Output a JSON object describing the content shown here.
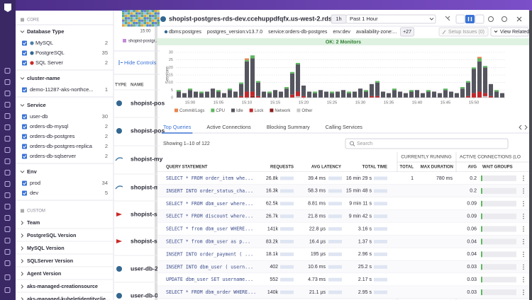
{
  "facets": {
    "core": "CORE",
    "groups": [
      {
        "title": "Database Type",
        "items": [
          {
            "label": "MySQL",
            "count": 2
          },
          {
            "label": "PostgreSQL",
            "count": 35
          },
          {
            "label": "SQL Server",
            "count": 2
          }
        ]
      },
      {
        "title": "cluster-name",
        "items": [
          {
            "label": "demo-11287-aks-northce...",
            "count": 1
          }
        ]
      },
      {
        "title": "Service",
        "items": [
          {
            "label": "user-db",
            "count": 30
          },
          {
            "label": "orders-db-mysql",
            "count": 2
          },
          {
            "label": "orders-db-postgres",
            "count": 2
          },
          {
            "label": "orders-db-postgres-replica",
            "count": 2
          },
          {
            "label": "orders-db-sqlserver",
            "count": 2
          }
        ]
      },
      {
        "title": "Env",
        "items": [
          {
            "label": "prod",
            "count": 34
          },
          {
            "label": "dev",
            "count": 5
          }
        ]
      }
    ],
    "custom": "CUSTOM",
    "custom_groups": [
      "Team",
      "PostgreSQL Version",
      "MySQL Version",
      "SQLServer Version",
      "Agent Version",
      "aks-managed-creationsource",
      "aks-managed-kubeletidentityclie..."
    ]
  },
  "list": {
    "chart_tick": "15:00",
    "legend": "shopist-postgr...",
    "hide_controls": "Hide Controls",
    "columns": [
      "TYPE",
      "NAME"
    ],
    "rows": [
      "shopist-pos",
      "shopist-pos",
      "shopist-my",
      "shopist-my",
      "shopist-sql",
      "shopist-sql",
      "user-db-2",
      "user-db-0"
    ]
  },
  "detail": {
    "title": "shopist-postgres-rds-dev.ccehuppdfqfx.us-west-2.rds.amazon...",
    "time_short": "1h",
    "time_range": "Past 1 Hour",
    "tags": [
      "dbms:postgres",
      "postgres_version:v13.7.0",
      "service:orders-db-postgres",
      "env:dev",
      "availability-zone:..."
    ],
    "more_tags": "+27",
    "setup_issues": "Setup Issues (0)",
    "view_related": "View Related",
    "monitors": "OK: 2 Monitors",
    "tabs": [
      "Top Queries",
      "Active Connections",
      "Blocking Summary",
      "Calling Services"
    ],
    "showing": "Showing 1–10 of 122",
    "search": "Search",
    "table": {
      "group_headers": [
        "CURRENTLY RUNNING",
        "ACTIVE CONNECTIONS (LO"
      ],
      "columns": [
        "QUERY STATEMENT",
        "REQUESTS",
        "AVG LATENCY",
        "TOTAL TIME",
        "TOTAL",
        "MAX DURATION",
        "AVG",
        "WAIT GROUPS"
      ],
      "rows": [
        {
          "query": "SELECT * FROM order_item whe...",
          "requests": "26.8k",
          "latency": "39.4 ms",
          "total_time": "16 min 29 s",
          "running_total": "1",
          "max_duration": "780 ms",
          "avg": "0.2"
        },
        {
          "query": "INSERT INTO order_status_cha...",
          "requests": "16.3k",
          "latency": "58.3 ms",
          "total_time": "15 min 48 s",
          "avg": "0.2"
        },
        {
          "query": "SELECT * FROM dbm_user where...",
          "requests": "62.5k",
          "latency": "8.81 ms",
          "total_time": "9 min 11 s",
          "avg": "0.09"
        },
        {
          "query": "SELECT * FROM discount where...",
          "requests": "26.7k",
          "latency": "21.8 ms",
          "total_time": "9 min 42 s",
          "avg": "0.09"
        },
        {
          "query": "SELECT * from dbm_user WHERE...",
          "requests": "141k",
          "latency": "22.8 µs",
          "total_time": "3.16 s",
          "avg": "0.06"
        },
        {
          "query": "SELECT * from dbm_user as p...",
          "requests": "83.2k",
          "latency": "16.4 µs",
          "total_time": "1.37 s",
          "avg": "0.04"
        },
        {
          "query": "INSERT INTO order_payment ( ...",
          "requests": "18.1k",
          "latency": "195 µs",
          "total_time": "2.96 s",
          "avg": "0.04"
        },
        {
          "query": "INSERT INTO dbm_user ( usern...",
          "requests": "402",
          "latency": "10.6 ms",
          "total_time": "25.2 s",
          "avg": "0.03"
        },
        {
          "query": "UPDATE dbm_user SET username...",
          "requests": "552",
          "latency": "4.73 ms",
          "total_time": "2.17 s",
          "avg": "0.03"
        },
        {
          "query": "SELECT * FROM dbm_order WHERE...",
          "requests": "140k",
          "latency": "21.1 µs",
          "total_time": "2.95 s",
          "avg": "0.03"
        }
      ]
    }
  },
  "chart_data": {
    "type": "bar",
    "stacked": true,
    "y_label": "Sessions",
    "categories": [
      null,
      null,
      "15:00",
      null,
      null,
      null,
      null,
      "15:05",
      null,
      null,
      null,
      null,
      "15:10",
      null,
      null,
      null,
      null,
      "15:15",
      null,
      null,
      null,
      null,
      "15:20",
      null,
      null,
      null,
      null,
      "15:25",
      null,
      null,
      null,
      null,
      "15:30",
      null,
      null,
      null,
      null,
      "15:35",
      null,
      null,
      null,
      null,
      "15:40",
      null,
      null,
      null,
      null,
      "15:45",
      null,
      null,
      null,
      null,
      "15:50",
      null,
      null,
      null,
      null,
      null
    ],
    "series": [
      {
        "name": "Commit/Logs",
        "color": "#e8834e",
        "values": [
          0,
          0,
          0,
          0,
          0,
          0,
          0,
          0,
          0,
          0,
          0,
          0,
          1,
          0,
          0,
          0,
          0,
          0,
          0,
          0,
          0,
          0,
          0,
          0,
          0,
          0,
          0,
          0,
          0,
          0,
          0,
          0,
          0,
          0,
          0,
          0,
          0,
          0,
          0,
          0,
          0,
          0,
          0,
          0,
          0,
          0,
          0,
          0,
          0,
          0,
          0,
          0,
          0,
          1,
          0,
          0,
          0,
          0
        ]
      },
      {
        "name": "CPU",
        "color": "#5fb760",
        "values": [
          1,
          0,
          1,
          0,
          1,
          0,
          0,
          1,
          0,
          1,
          0,
          1,
          1,
          2,
          1,
          0,
          1,
          0,
          0,
          1,
          1,
          1,
          0,
          0,
          1,
          0,
          0,
          1,
          0,
          0,
          1,
          0,
          0,
          1,
          0,
          1,
          0,
          0,
          1,
          0,
          0,
          1,
          0,
          0,
          1,
          0,
          0,
          1,
          0,
          0,
          1,
          1,
          1,
          2,
          1,
          0,
          1,
          0
        ]
      },
      {
        "name": "Idle",
        "color": "#55555f",
        "values": [
          4,
          3,
          5,
          4,
          3,
          4,
          6,
          4,
          3,
          5,
          4,
          8,
          20,
          22,
          9,
          4,
          3,
          5,
          4,
          6,
          14,
          18,
          7,
          4,
          3,
          5,
          4,
          3,
          4,
          5,
          3,
          4,
          6,
          4,
          8,
          9,
          4,
          3,
          5,
          4,
          3,
          4,
          5,
          3,
          4,
          4,
          3,
          5,
          4,
          3,
          6,
          9,
          16,
          20,
          17,
          8,
          4,
          3
        ]
      },
      {
        "name": "Lock",
        "color": "#c1282d",
        "values": [
          0,
          0,
          0,
          0,
          0,
          0,
          0,
          0,
          0,
          0,
          0,
          1,
          4,
          3,
          1,
          0,
          0,
          0,
          0,
          0,
          2,
          3,
          1,
          0,
          0,
          0,
          0,
          0,
          0,
          0,
          0,
          0,
          0,
          0,
          1,
          1,
          0,
          0,
          0,
          0,
          0,
          0,
          0,
          0,
          0,
          0,
          0,
          0,
          0,
          0,
          0,
          1,
          3,
          4,
          2,
          1,
          0,
          0
        ]
      },
      {
        "name": "Network",
        "color": "#8b1c1c",
        "values": [
          0,
          0,
          0,
          0,
          0,
          0,
          0,
          0,
          0,
          0,
          0,
          0,
          0,
          1,
          0,
          0,
          0,
          0,
          0,
          0,
          0,
          0,
          0,
          0,
          0,
          0,
          0,
          0,
          0,
          0,
          0,
          0,
          0,
          0,
          0,
          0,
          0,
          0,
          0,
          0,
          0,
          0,
          0,
          0,
          0,
          0,
          0,
          0,
          0,
          0,
          0,
          0,
          0,
          0,
          0,
          0,
          0,
          0
        ]
      },
      {
        "name": "Other",
        "color": "#c8c8c8",
        "values": [
          0,
          0,
          0,
          0,
          0,
          0,
          0,
          0,
          0,
          0,
          0,
          0,
          0,
          0,
          0,
          0,
          0,
          0,
          0,
          0,
          0,
          1,
          0,
          0,
          0,
          0,
          0,
          0,
          0,
          0,
          0,
          0,
          0,
          0,
          0,
          0,
          0,
          0,
          0,
          0,
          0,
          0,
          0,
          0,
          0,
          0,
          0,
          0,
          0,
          0,
          0,
          0,
          0,
          0,
          1,
          0,
          0,
          0
        ]
      }
    ],
    "ylim": [
      0,
      30
    ],
    "yticks": [
      0,
      5,
      10,
      15,
      20,
      25,
      30
    ],
    "grid": true
  }
}
